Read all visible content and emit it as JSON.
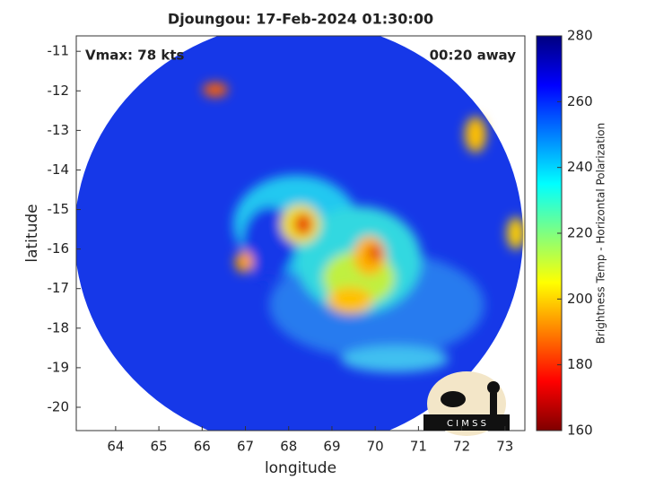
{
  "chart_data": {
    "type": "image",
    "title": "Djoungou: 17-Feb-2024 01:30:00",
    "xlabel": "longitude",
    "ylabel": "latitude",
    "annotations": [
      "Vmax: 78 kts",
      "00:20 away"
    ],
    "logo": "C I M S S",
    "xlim": [
      63.09,
      73.46
    ],
    "xticks": [
      64,
      65,
      66,
      67,
      68,
      69,
      70,
      71,
      72,
      73
    ],
    "ylim": [
      -20.59,
      -10.61
    ],
    "yticks": [
      -20,
      -19,
      -18,
      -17,
      -16,
      -15,
      -14,
      -13,
      -12,
      -11
    ],
    "colorbar": {
      "label": "Brightness Temp - Horizontal Polarization",
      "lim": [
        160,
        280
      ],
      "ticks": [
        160,
        180,
        200,
        220,
        240,
        260,
        280
      ],
      "colormap": "jet_r"
    }
  }
}
